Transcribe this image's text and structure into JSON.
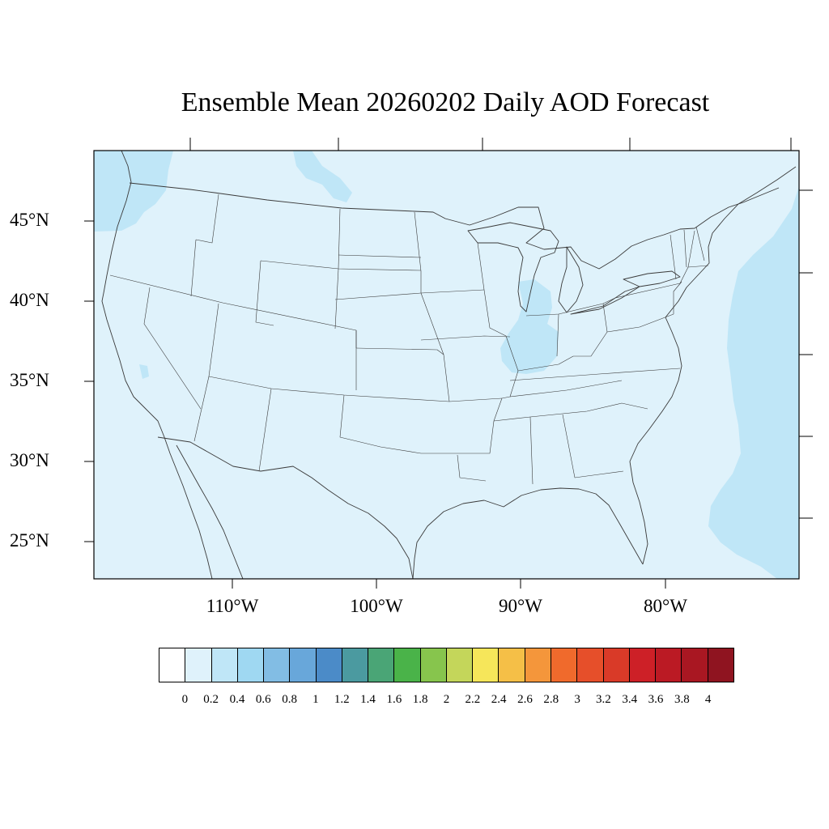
{
  "title": "Ensemble Mean 20260202 Daily AOD Forecast",
  "map": {
    "projection": "Lambert conformal (CONUS)",
    "background_color": "#dff2fb",
    "plume_color": "#bfe6f7",
    "boundary_color": "#3a3a3a",
    "lat_labels": [
      "45°N",
      "40°N",
      "35°N",
      "30°N",
      "25°N"
    ],
    "lon_labels": [
      "110°W",
      "100°W",
      "90°W",
      "80°W"
    ]
  },
  "colorbar": {
    "colors": [
      "#ffffff",
      "#dff2fb",
      "#bfe6f7",
      "#9fd8f2",
      "#82bde4",
      "#68a7da",
      "#4b8bc8",
      "#4b9aa0",
      "#4aa576",
      "#4ab349",
      "#87c54d",
      "#c4d65a",
      "#f6e65a",
      "#f5bf47",
      "#f4963b",
      "#f06a2c",
      "#e64f2a",
      "#d93a28",
      "#cd2027",
      "#bb1a24",
      "#a91722",
      "#8f1420"
    ],
    "tick_labels": [
      "0",
      "0.2",
      "0.4",
      "0.6",
      "0.8",
      "1",
      "1.2",
      "1.4",
      "1.6",
      "1.8",
      "2",
      "2.2",
      "2.4",
      "2.6",
      "2.8",
      "3",
      "3.2",
      "3.4",
      "3.6",
      "3.8",
      "4"
    ]
  }
}
